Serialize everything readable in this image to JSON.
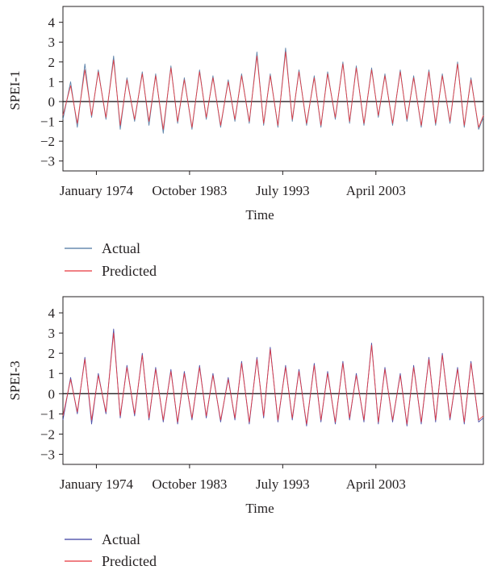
{
  "chart_data": [
    {
      "type": "line",
      "title": "",
      "xlabel": "Time",
      "ylabel": "SPEI-1",
      "ylim": [
        -3.5,
        4.8
      ],
      "yticks": [
        4,
        3,
        2,
        1,
        0,
        -1,
        -2,
        -3
      ],
      "ytick_labels": [
        "4",
        "3",
        "2",
        "1",
        "0",
        "−1",
        "−2",
        "−3"
      ],
      "x_range": [
        1970.5,
        2014.5
      ],
      "xticks": [
        1974.0,
        1983.75,
        1993.5,
        2003.25
      ],
      "xtick_labels": [
        "January 1974",
        "October 1983",
        "July 1993",
        "April 2003"
      ],
      "zero_line": true,
      "legend_position": "bottom",
      "series": [
        {
          "name": "Actual",
          "color": "#4b74a0",
          "x": [
            1970.5,
            1971.3,
            1972.0,
            1972.8,
            1973.5,
            1974.2,
            1975.0,
            1975.8,
            1976.5,
            1977.2,
            1978.0,
            1978.8,
            1979.5,
            1980.2,
            1981.0,
            1981.8,
            1982.5,
            1983.2,
            1984.0,
            1984.8,
            1985.5,
            1986.2,
            1987.0,
            1987.8,
            1988.5,
            1989.2,
            1990.0,
            1990.8,
            1991.5,
            1992.2,
            1993.0,
            1993.8,
            1994.5,
            1995.2,
            1996.0,
            1996.8,
            1997.5,
            1998.2,
            1999.0,
            1999.8,
            2000.5,
            2001.2,
            2002.0,
            2002.8,
            2003.5,
            2004.2,
            2005.0,
            2005.8,
            2006.5,
            2007.2,
            2008.0,
            2008.8,
            2009.5,
            2010.2,
            2011.0,
            2011.8,
            2012.5,
            2013.2,
            2014.0,
            2014.5
          ],
          "y": [
            -0.9,
            1.0,
            -1.3,
            1.9,
            -0.8,
            1.6,
            -0.9,
            2.3,
            -1.4,
            1.2,
            -1.0,
            1.5,
            -1.2,
            1.4,
            -1.6,
            1.8,
            -1.1,
            1.2,
            -1.4,
            1.6,
            -0.9,
            1.3,
            -1.3,
            1.1,
            -1.0,
            1.4,
            -1.1,
            2.5,
            -1.2,
            1.4,
            -1.3,
            2.7,
            -1.0,
            1.6,
            -1.2,
            1.3,
            -1.3,
            1.5,
            -0.9,
            2.0,
            -1.1,
            1.8,
            -1.2,
            1.7,
            -0.8,
            1.4,
            -1.2,
            1.6,
            -1.0,
            1.3,
            -1.3,
            1.6,
            -1.2,
            1.4,
            -1.1,
            2.0,
            -1.3,
            1.2,
            -1.4,
            -0.8
          ]
        },
        {
          "name": "Predicted",
          "color": "#e8343a",
          "x": [
            1970.5,
            1971.3,
            1972.0,
            1972.8,
            1973.5,
            1974.2,
            1975.0,
            1975.8,
            1976.5,
            1977.2,
            1978.0,
            1978.8,
            1979.5,
            1980.2,
            1981.0,
            1981.8,
            1982.5,
            1983.2,
            1984.0,
            1984.8,
            1985.5,
            1986.2,
            1987.0,
            1987.8,
            1988.5,
            1989.2,
            1990.0,
            1990.8,
            1991.5,
            1992.2,
            1993.0,
            1993.8,
            1994.5,
            1995.2,
            1996.0,
            1996.8,
            1997.5,
            1998.2,
            1999.0,
            1999.8,
            2000.5,
            2001.2,
            2002.0,
            2002.8,
            2003.5,
            2004.2,
            2005.0,
            2005.8,
            2006.5,
            2007.2,
            2008.0,
            2008.8,
            2009.5,
            2010.2,
            2011.0,
            2011.8,
            2012.5,
            2013.2,
            2014.0,
            2014.5
          ],
          "y": [
            -0.7,
            0.8,
            -1.1,
            1.6,
            -0.7,
            1.5,
            -0.8,
            2.1,
            -1.2,
            1.1,
            -0.9,
            1.4,
            -1.0,
            1.3,
            -1.4,
            1.7,
            -1.0,
            1.1,
            -1.3,
            1.5,
            -0.8,
            1.2,
            -1.2,
            1.0,
            -0.9,
            1.3,
            -1.0,
            2.3,
            -1.1,
            1.3,
            -1.2,
            2.5,
            -0.9,
            1.5,
            -1.1,
            1.2,
            -1.2,
            1.4,
            -0.8,
            1.9,
            -1.0,
            1.7,
            -1.1,
            1.6,
            -0.7,
            1.3,
            -1.1,
            1.5,
            -0.9,
            1.2,
            -1.2,
            1.5,
            -1.1,
            1.3,
            -1.0,
            1.9,
            -1.2,
            1.1,
            -1.3,
            -0.7
          ]
        }
      ]
    },
    {
      "type": "line",
      "title": "",
      "xlabel": "Time",
      "ylabel": "SPEI-3",
      "ylim": [
        -3.5,
        4.8
      ],
      "yticks": [
        4,
        3,
        2,
        1,
        0,
        -1,
        -2,
        -3
      ],
      "ytick_labels": [
        "4",
        "3",
        "2",
        "1",
        "0",
        "−1",
        "−2",
        "−3"
      ],
      "x_range": [
        1970.5,
        2014.5
      ],
      "xticks": [
        1974.0,
        1983.75,
        1993.5,
        2003.25
      ],
      "xtick_labels": [
        "January 1974",
        "October 1983",
        "July 1993",
        "April 2003"
      ],
      "zero_line": true,
      "legend_position": "bottom",
      "series": [
        {
          "name": "Actual",
          "color": "#3a3fa0",
          "x": [
            1970.5,
            1971.3,
            1972.0,
            1972.8,
            1973.5,
            1974.2,
            1975.0,
            1975.8,
            1976.5,
            1977.2,
            1978.0,
            1978.8,
            1979.5,
            1980.2,
            1981.0,
            1981.8,
            1982.5,
            1983.2,
            1984.0,
            1984.8,
            1985.5,
            1986.2,
            1987.0,
            1987.8,
            1988.5,
            1989.2,
            1990.0,
            1990.8,
            1991.5,
            1992.2,
            1993.0,
            1993.8,
            1994.5,
            1995.2,
            1996.0,
            1996.8,
            1997.5,
            1998.2,
            1999.0,
            1999.8,
            2000.5,
            2001.2,
            2002.0,
            2002.8,
            2003.5,
            2004.2,
            2005.0,
            2005.8,
            2006.5,
            2007.2,
            2008.0,
            2008.8,
            2009.5,
            2010.2,
            2011.0,
            2011.8,
            2012.5,
            2013.2,
            2014.0,
            2014.5
          ],
          "y": [
            -1.3,
            0.8,
            -1.0,
            1.8,
            -1.5,
            1.0,
            -1.0,
            3.2,
            -1.2,
            1.4,
            -1.1,
            2.0,
            -1.3,
            1.3,
            -1.4,
            1.2,
            -1.5,
            1.1,
            -1.3,
            1.4,
            -1.2,
            1.0,
            -1.4,
            0.8,
            -1.3,
            1.6,
            -1.5,
            1.8,
            -1.2,
            2.3,
            -1.4,
            1.4,
            -1.3,
            1.2,
            -1.6,
            1.5,
            -1.4,
            1.1,
            -1.5,
            1.6,
            -1.3,
            1.0,
            -1.4,
            2.5,
            -1.5,
            1.3,
            -1.4,
            1.0,
            -1.6,
            1.4,
            -1.5,
            1.8,
            -1.4,
            2.0,
            -1.3,
            1.3,
            -1.5,
            1.6,
            -1.4,
            -1.2
          ]
        },
        {
          "name": "Predicted",
          "color": "#e8343a",
          "x": [
            1970.5,
            1971.3,
            1972.0,
            1972.8,
            1973.5,
            1974.2,
            1975.0,
            1975.8,
            1976.5,
            1977.2,
            1978.0,
            1978.8,
            1979.5,
            1980.2,
            1981.0,
            1981.8,
            1982.5,
            1983.2,
            1984.0,
            1984.8,
            1985.5,
            1986.2,
            1987.0,
            1987.8,
            1988.5,
            1989.2,
            1990.0,
            1990.8,
            1991.5,
            1992.2,
            1993.0,
            1993.8,
            1994.5,
            1995.2,
            1996.0,
            1996.8,
            1997.5,
            1998.2,
            1999.0,
            1999.8,
            2000.5,
            2001.2,
            2002.0,
            2002.8,
            2003.5,
            2004.2,
            2005.0,
            2005.8,
            2006.5,
            2007.2,
            2008.0,
            2008.8,
            2009.5,
            2010.2,
            2011.0,
            2011.8,
            2012.5,
            2013.2,
            2014.0,
            2014.5
          ],
          "y": [
            -1.1,
            0.7,
            -0.9,
            1.7,
            -1.3,
            0.9,
            -0.9,
            3.0,
            -1.1,
            1.3,
            -1.0,
            1.9,
            -1.2,
            1.2,
            -1.3,
            1.1,
            -1.4,
            1.0,
            -1.2,
            1.3,
            -1.1,
            0.9,
            -1.3,
            0.7,
            -1.2,
            1.5,
            -1.4,
            1.7,
            -1.1,
            2.2,
            -1.3,
            1.3,
            -1.2,
            1.1,
            -1.5,
            1.4,
            -1.3,
            1.0,
            -1.4,
            1.5,
            -1.2,
            0.9,
            -1.3,
            2.4,
            -1.4,
            1.2,
            -1.3,
            0.9,
            -1.5,
            1.3,
            -1.4,
            1.7,
            -1.3,
            1.9,
            -1.2,
            1.2,
            -1.4,
            1.5,
            -1.3,
            -1.1
          ]
        }
      ]
    }
  ]
}
